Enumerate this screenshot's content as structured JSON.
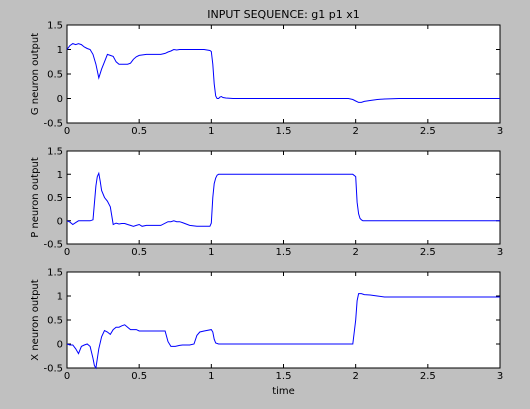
{
  "figure": {
    "title": "INPUT SEQUENCE: g1 p1 x1",
    "background": "#c0c0c0",
    "plot_background": "#ffffff",
    "line_color": "#0000ff",
    "x_ticks": [
      "0",
      "0.5",
      "1",
      "1.5",
      "2",
      "2.5",
      "3"
    ],
    "y_ticks": [
      "-0.5",
      "0",
      "0.5",
      "1",
      "1.5"
    ]
  },
  "chart_data": [
    {
      "type": "line",
      "title": "INPUT SEQUENCE: g1 p1 x1",
      "xlabel": "",
      "ylabel": "G neuron output",
      "xlim": [
        0,
        3
      ],
      "ylim": [
        -0.5,
        1.5
      ],
      "grid": false,
      "series": [
        {
          "x": [
            0,
            0.02,
            0.04,
            0.06,
            0.08,
            0.1,
            0.12,
            0.14,
            0.16,
            0.18,
            0.2,
            0.22,
            0.24,
            0.26,
            0.28,
            0.3,
            0.32,
            0.34,
            0.36,
            0.38,
            0.4,
            0.42,
            0.44,
            0.46,
            0.48,
            0.5,
            0.55,
            0.6,
            0.65,
            0.68,
            0.7,
            0.72,
            0.74,
            0.76,
            0.78,
            0.8,
            0.85,
            0.9,
            0.95,
            0.99,
            1.0,
            1.01,
            1.02,
            1.03,
            1.04,
            1.05,
            1.06,
            1.07,
            1.08,
            1.1,
            1.15,
            1.2,
            1.3,
            1.5,
            1.8,
            1.95,
            1.98,
            2.0,
            2.02,
            2.04,
            2.06,
            2.1,
            2.15,
            2.2,
            2.3,
            2.6,
            3.0
          ],
          "y": [
            1.0,
            1.08,
            1.12,
            1.1,
            1.12,
            1.1,
            1.05,
            1.02,
            1.0,
            0.9,
            0.7,
            0.42,
            0.6,
            0.75,
            0.9,
            0.88,
            0.86,
            0.75,
            0.7,
            0.7,
            0.7,
            0.7,
            0.72,
            0.8,
            0.85,
            0.88,
            0.9,
            0.9,
            0.9,
            0.92,
            0.95,
            0.97,
            1.0,
            0.99,
            1.0,
            1.0,
            1.0,
            1.0,
            1.0,
            0.98,
            0.96,
            0.7,
            0.3,
            0.05,
            0.0,
            0.0,
            0.03,
            0.04,
            0.02,
            0.01,
            0.0,
            0.0,
            0.0,
            0.0,
            0.0,
            0.0,
            -0.02,
            -0.05,
            -0.08,
            -0.08,
            -0.06,
            -0.04,
            -0.02,
            -0.01,
            0.0,
            0.0,
            0.0
          ]
        }
      ]
    },
    {
      "type": "line",
      "title": "",
      "xlabel": "",
      "ylabel": "P neuron output",
      "xlim": [
        0,
        3
      ],
      "ylim": [
        -0.5,
        1.5
      ],
      "grid": false,
      "series": [
        {
          "x": [
            0,
            0.02,
            0.04,
            0.06,
            0.08,
            0.1,
            0.12,
            0.14,
            0.16,
            0.18,
            0.2,
            0.21,
            0.22,
            0.23,
            0.24,
            0.26,
            0.28,
            0.3,
            0.32,
            0.34,
            0.36,
            0.38,
            0.4,
            0.42,
            0.44,
            0.46,
            0.48,
            0.5,
            0.52,
            0.55,
            0.6,
            0.65,
            0.7,
            0.72,
            0.74,
            0.76,
            0.78,
            0.8,
            0.85,
            0.9,
            0.95,
            0.99,
            1.0,
            1.01,
            1.02,
            1.03,
            1.04,
            1.05,
            1.06,
            1.07,
            1.08,
            1.1,
            1.2,
            1.5,
            1.8,
            1.98,
            2.0,
            2.01,
            2.02,
            2.03,
            2.04,
            2.05,
            2.06,
            2.1,
            2.5,
            3.0
          ],
          "y": [
            0.0,
            -0.03,
            -0.08,
            -0.04,
            0.0,
            0.0,
            0.0,
            0.0,
            0.0,
            0.02,
            0.75,
            0.95,
            1.02,
            0.85,
            0.65,
            0.5,
            0.42,
            0.3,
            -0.08,
            -0.05,
            -0.07,
            -0.06,
            -0.06,
            -0.08,
            -0.1,
            -0.12,
            -0.1,
            -0.08,
            -0.12,
            -0.1,
            -0.1,
            -0.1,
            -0.02,
            -0.02,
            0.0,
            -0.02,
            -0.02,
            -0.04,
            -0.1,
            -0.12,
            -0.12,
            -0.12,
            -0.05,
            0.5,
            0.8,
            0.92,
            0.98,
            1.0,
            1.0,
            1.0,
            1.0,
            1.0,
            1.0,
            1.0,
            1.0,
            1.0,
            0.95,
            0.4,
            0.15,
            0.05,
            0.02,
            0.0,
            0.0,
            0.0,
            0.0,
            0.0
          ]
        }
      ]
    },
    {
      "type": "line",
      "title": "",
      "xlabel": "time",
      "ylabel": "X neuron output",
      "xlim": [
        0,
        3
      ],
      "ylim": [
        -0.5,
        1.5
      ],
      "grid": false,
      "series": [
        {
          "x": [
            0,
            0.02,
            0.04,
            0.06,
            0.08,
            0.1,
            0.12,
            0.14,
            0.16,
            0.18,
            0.19,
            0.2,
            0.22,
            0.24,
            0.26,
            0.28,
            0.3,
            0.32,
            0.34,
            0.36,
            0.38,
            0.4,
            0.42,
            0.44,
            0.46,
            0.48,
            0.5,
            0.55,
            0.6,
            0.65,
            0.68,
            0.7,
            0.72,
            0.75,
            0.78,
            0.8,
            0.85,
            0.88,
            0.9,
            0.92,
            0.95,
            1.0,
            1.01,
            1.02,
            1.03,
            1.05,
            1.1,
            1.2,
            1.5,
            1.8,
            1.98,
            2.0,
            2.01,
            2.02,
            2.04,
            2.06,
            2.1,
            2.15,
            2.2,
            2.5,
            2.8,
            3.0
          ],
          "y": [
            0.0,
            -0.02,
            -0.02,
            -0.1,
            -0.2,
            -0.05,
            -0.02,
            0.0,
            -0.05,
            -0.3,
            -0.45,
            -0.5,
            -0.1,
            0.15,
            0.28,
            0.25,
            0.2,
            0.3,
            0.35,
            0.35,
            0.38,
            0.4,
            0.35,
            0.3,
            0.3,
            0.3,
            0.27,
            0.27,
            0.27,
            0.27,
            0.27,
            0.05,
            -0.05,
            -0.05,
            -0.03,
            -0.02,
            -0.02,
            0.0,
            0.18,
            0.25,
            0.27,
            0.3,
            0.25,
            0.1,
            0.02,
            0.0,
            0.0,
            0.0,
            0.0,
            0.0,
            0.0,
            0.5,
            0.9,
            1.05,
            1.05,
            1.03,
            1.02,
            1.0,
            0.98,
            0.98,
            0.98,
            0.98
          ]
        }
      ]
    }
  ]
}
